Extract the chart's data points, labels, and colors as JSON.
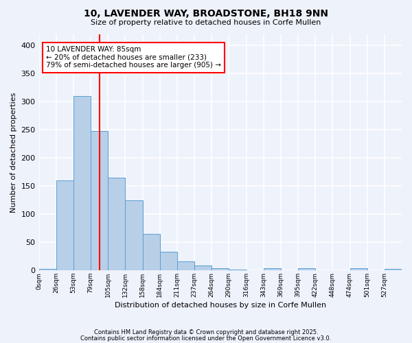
{
  "title1": "10, LAVENDER WAY, BROADSTONE, BH18 9NN",
  "title2": "Size of property relative to detached houses in Corfe Mullen",
  "xlabel": "Distribution of detached houses by size in Corfe Mullen",
  "ylabel": "Number of detached properties",
  "bin_labels": [
    "0sqm",
    "26sqm",
    "53sqm",
    "79sqm",
    "105sqm",
    "132sqm",
    "158sqm",
    "184sqm",
    "211sqm",
    "237sqm",
    "264sqm",
    "290sqm",
    "316sqm",
    "343sqm",
    "369sqm",
    "395sqm",
    "422sqm",
    "448sqm",
    "474sqm",
    "501sqm",
    "527sqm"
  ],
  "bar_values": [
    2,
    160,
    310,
    248,
    165,
    125,
    65,
    33,
    16,
    8,
    3,
    1,
    0,
    3,
    0,
    3,
    0,
    0,
    3,
    0,
    2
  ],
  "bar_color": "#b8cfe8",
  "bar_edge_color": "#5a9fd4",
  "vline_index": 3,
  "vline_color": "red",
  "annotation_text": "10 LAVENDER WAY: 85sqm\n← 20% of detached houses are smaller (233)\n79% of semi-detached houses are larger (905) →",
  "annotation_box_color": "white",
  "annotation_box_edge": "red",
  "footer1": "Contains HM Land Registry data © Crown copyright and database right 2025.",
  "footer2": "Contains public sector information licensed under the Open Government Licence v3.0.",
  "ylim": [
    0,
    420
  ],
  "yticks": [
    0,
    50,
    100,
    150,
    200,
    250,
    300,
    350,
    400
  ],
  "background_color": "#eef2fb",
  "grid_color": "#ffffff"
}
